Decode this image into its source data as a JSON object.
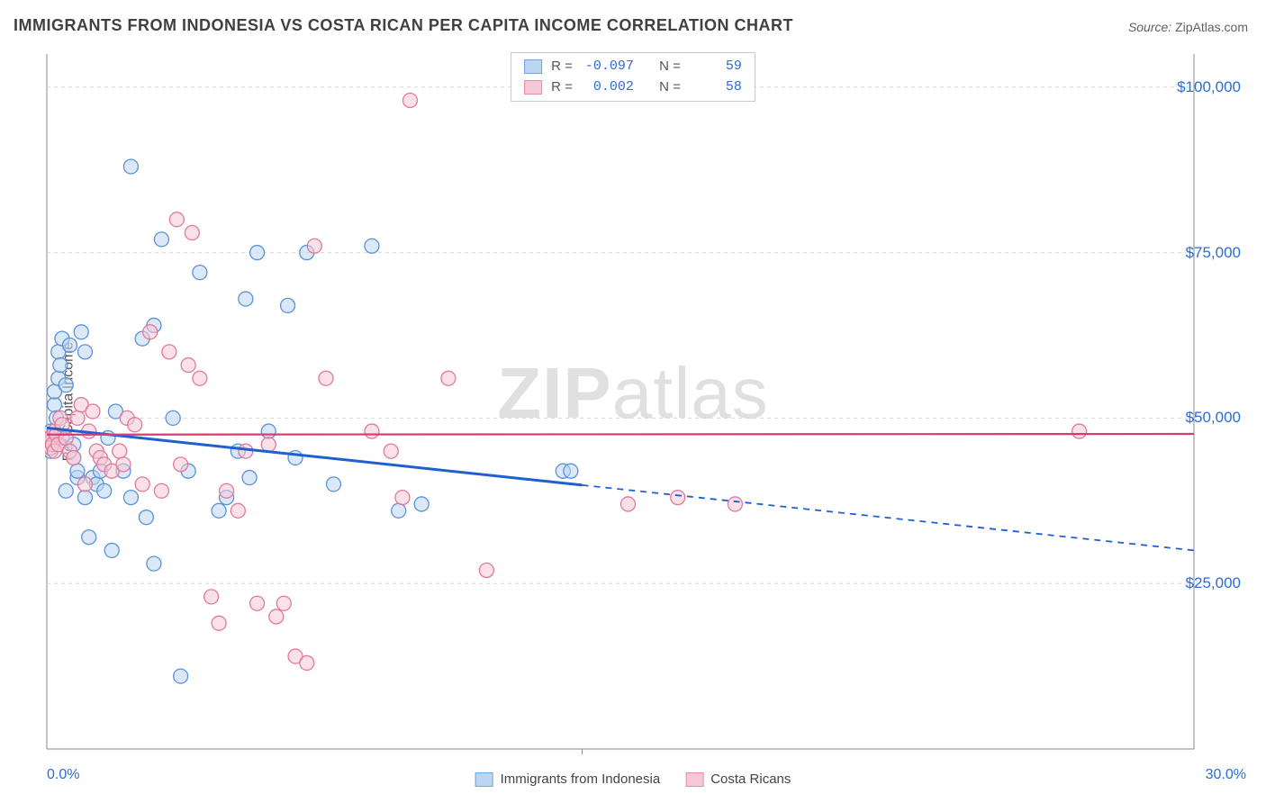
{
  "title": "IMMIGRANTS FROM INDONESIA VS COSTA RICAN PER CAPITA INCOME CORRELATION CHART",
  "source_label": "Source:",
  "source_value": "ZipAtlas.com",
  "watermark_bold": "ZIP",
  "watermark_rest": "atlas",
  "ylabel": "Per Capita Income",
  "chart": {
    "type": "scatter-correlation",
    "background_color": "#ffffff",
    "grid_color": "#d9d9d9",
    "grid_dash": "4,4",
    "axis_color": "#888888",
    "x": {
      "min": 0,
      "max": 30,
      "ticks": [
        0,
        30
      ],
      "tick_labels": [
        "0.0%",
        "30.0%"
      ],
      "tick_color": "#2b6dd6"
    },
    "y": {
      "min": 0,
      "max": 105000,
      "gridlines": [
        25000,
        50000,
        75000,
        100000
      ],
      "tick_labels": [
        "$25,000",
        "$50,000",
        "$75,000",
        "$100,000"
      ],
      "tick_color": "#2b6dd6"
    },
    "series": [
      {
        "id": "indonesia",
        "label": "Immigrants from Indonesia",
        "swatch_fill": "#bcd5f2",
        "swatch_stroke": "#6fa4e3",
        "marker_fill": "#bcd5f2",
        "marker_fill_opacity": 0.55,
        "marker_stroke": "#5b93d8",
        "marker_r": 8,
        "R": "-0.097",
        "N": "59",
        "trend": {
          "color": "#1f5fd0",
          "width": 3,
          "y_at_xmin": 48500,
          "y_at_xmax": 30000,
          "solid_until_x": 14
        },
        "points": [
          [
            0.05,
            46000
          ],
          [
            0.05,
            47000
          ],
          [
            0.1,
            45000
          ],
          [
            0.1,
            48000
          ],
          [
            0.15,
            46500
          ],
          [
            0.2,
            52000
          ],
          [
            0.2,
            54000
          ],
          [
            0.25,
            50000
          ],
          [
            0.3,
            56000
          ],
          [
            0.3,
            60000
          ],
          [
            0.35,
            58000
          ],
          [
            0.4,
            62000
          ],
          [
            0.4,
            47000
          ],
          [
            0.5,
            55000
          ],
          [
            0.5,
            39000
          ],
          [
            0.6,
            61000
          ],
          [
            0.7,
            44000
          ],
          [
            0.7,
            46000
          ],
          [
            0.8,
            41000
          ],
          [
            0.8,
            42000
          ],
          [
            0.9,
            63000
          ],
          [
            1.0,
            38000
          ],
          [
            1.0,
            60000
          ],
          [
            1.1,
            32000
          ],
          [
            1.2,
            41000
          ],
          [
            1.3,
            40000
          ],
          [
            1.4,
            42000
          ],
          [
            1.5,
            39000
          ],
          [
            1.6,
            47000
          ],
          [
            1.7,
            30000
          ],
          [
            1.8,
            51000
          ],
          [
            2.0,
            42000
          ],
          [
            2.2,
            88000
          ],
          [
            2.2,
            38000
          ],
          [
            2.5,
            62000
          ],
          [
            2.6,
            35000
          ],
          [
            2.8,
            28000
          ],
          [
            2.8,
            64000
          ],
          [
            3.0,
            77000
          ],
          [
            3.3,
            50000
          ],
          [
            3.5,
            11000
          ],
          [
            3.7,
            42000
          ],
          [
            4.0,
            72000
          ],
          [
            4.5,
            36000
          ],
          [
            4.7,
            38000
          ],
          [
            5.0,
            45000
          ],
          [
            5.2,
            68000
          ],
          [
            5.3,
            41000
          ],
          [
            5.5,
            75000
          ],
          [
            5.8,
            48000
          ],
          [
            6.3,
            67000
          ],
          [
            6.5,
            44000
          ],
          [
            6.8,
            75000
          ],
          [
            7.5,
            40000
          ],
          [
            8.5,
            76000
          ],
          [
            9.2,
            36000
          ],
          [
            9.8,
            37000
          ],
          [
            13.5,
            42000
          ],
          [
            13.7,
            42000
          ]
        ]
      },
      {
        "id": "costa_rican",
        "label": "Costa Ricans",
        "swatch_fill": "#f6c9d6",
        "swatch_stroke": "#e98ba6",
        "marker_fill": "#f6c9d6",
        "marker_fill_opacity": 0.55,
        "marker_stroke": "#e07a98",
        "marker_r": 8,
        "R": " 0.002",
        "N": "58",
        "trend": {
          "color": "#d83a73",
          "width": 2.2,
          "y_at_xmin": 47500,
          "y_at_xmax": 47600,
          "solid_until_x": 30
        },
        "points": [
          [
            0.05,
            46500
          ],
          [
            0.1,
            47000
          ],
          [
            0.1,
            45500
          ],
          [
            0.15,
            46000
          ],
          [
            0.2,
            48000
          ],
          [
            0.2,
            45000
          ],
          [
            0.25,
            47500
          ],
          [
            0.3,
            46000
          ],
          [
            0.35,
            50000
          ],
          [
            0.4,
            49000
          ],
          [
            0.5,
            47000
          ],
          [
            0.6,
            45000
          ],
          [
            0.7,
            44000
          ],
          [
            0.8,
            50000
          ],
          [
            0.9,
            52000
          ],
          [
            1.0,
            40000
          ],
          [
            1.1,
            48000
          ],
          [
            1.2,
            51000
          ],
          [
            1.3,
            45000
          ],
          [
            1.4,
            44000
          ],
          [
            1.5,
            43000
          ],
          [
            1.7,
            42000
          ],
          [
            1.9,
            45000
          ],
          [
            2.0,
            43000
          ],
          [
            2.1,
            50000
          ],
          [
            2.3,
            49000
          ],
          [
            2.5,
            40000
          ],
          [
            2.7,
            63000
          ],
          [
            3.0,
            39000
          ],
          [
            3.2,
            60000
          ],
          [
            3.4,
            80000
          ],
          [
            3.5,
            43000
          ],
          [
            3.7,
            58000
          ],
          [
            3.8,
            78000
          ],
          [
            4.0,
            56000
          ],
          [
            4.3,
            23000
          ],
          [
            4.5,
            19000
          ],
          [
            4.7,
            39000
          ],
          [
            5.0,
            36000
          ],
          [
            5.2,
            45000
          ],
          [
            5.5,
            22000
          ],
          [
            5.8,
            46000
          ],
          [
            6.0,
            20000
          ],
          [
            6.2,
            22000
          ],
          [
            6.5,
            14000
          ],
          [
            6.8,
            13000
          ],
          [
            7.0,
            76000
          ],
          [
            7.3,
            56000
          ],
          [
            8.5,
            48000
          ],
          [
            9.0,
            45000
          ],
          [
            9.3,
            38000
          ],
          [
            9.5,
            98000
          ],
          [
            10.5,
            56000
          ],
          [
            11.5,
            27000
          ],
          [
            15.2,
            37000
          ],
          [
            16.5,
            38000
          ],
          [
            18.0,
            37000
          ],
          [
            27.0,
            48000
          ]
        ]
      }
    ],
    "legend_top": {
      "R_label": "R =",
      "N_label": "N ="
    }
  }
}
